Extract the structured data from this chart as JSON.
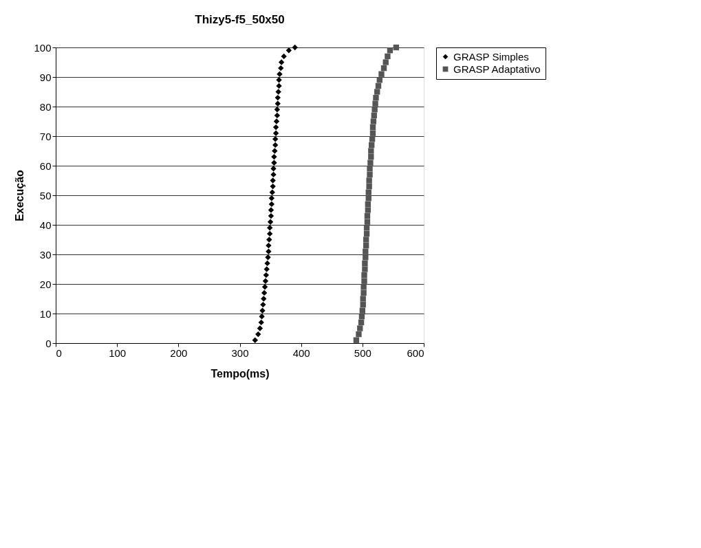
{
  "chart_data": {
    "type": "scatter",
    "title": "Thizy5-f5_50x50",
    "xlabel": "Tempo(ms)",
    "ylabel": "Execução",
    "xlim": [
      0,
      600
    ],
    "xticks": [
      0,
      100,
      200,
      300,
      400,
      500,
      600
    ],
    "ylim": [
      0,
      100
    ],
    "yticks": [
      0,
      10,
      20,
      30,
      40,
      50,
      60,
      70,
      80,
      90,
      100
    ],
    "grid": "y",
    "legend": "right",
    "series": [
      {
        "name": "GRASP Simples",
        "color": "#000000",
        "marker": "diamond",
        "x": [
          325,
          330,
          333,
          335,
          336,
          337,
          338,
          339,
          340,
          341,
          342,
          343,
          344,
          345,
          346,
          347,
          347,
          348,
          349,
          349,
          350,
          351,
          351,
          352,
          352,
          353,
          354,
          354,
          355,
          355,
          356,
          356,
          357,
          358,
          358,
          359,
          359,
          360,
          361,
          361,
          362,
          362,
          363,
          364,
          364,
          365,
          367,
          368,
          372,
          380,
          390
        ],
        "values": [
          1,
          3,
          5,
          7,
          9,
          11,
          13,
          15,
          17,
          19,
          21,
          23,
          25,
          27,
          29,
          31,
          33,
          35,
          37,
          39,
          41,
          43,
          45,
          47,
          49,
          51,
          53,
          55,
          57,
          59,
          61,
          63,
          65,
          67,
          69,
          71,
          73,
          75,
          77,
          79,
          81,
          83,
          85,
          87,
          89,
          91,
          93,
          95,
          97,
          99,
          100
        ]
      },
      {
        "name": "GRASP Adaptativo",
        "color": "#555555",
        "marker": "square",
        "x": [
          490,
          494,
          496,
          498,
          499,
          500,
          501,
          501,
          502,
          502,
          503,
          503,
          504,
          504,
          505,
          505,
          506,
          506,
          507,
          507,
          508,
          508,
          509,
          509,
          510,
          510,
          511,
          511,
          512,
          512,
          513,
          514,
          514,
          515,
          516,
          517,
          517,
          518,
          519,
          520,
          521,
          522,
          524,
          526,
          528,
          531,
          535,
          538,
          541,
          545,
          555
        ],
        "values": [
          1,
          3,
          5,
          7,
          9,
          11,
          13,
          15,
          17,
          19,
          21,
          23,
          25,
          27,
          29,
          31,
          33,
          35,
          37,
          39,
          41,
          43,
          45,
          47,
          49,
          51,
          53,
          55,
          57,
          59,
          61,
          63,
          65,
          67,
          69,
          71,
          73,
          75,
          77,
          79,
          81,
          83,
          85,
          87,
          89,
          91,
          93,
          95,
          97,
          99,
          100
        ]
      }
    ]
  }
}
